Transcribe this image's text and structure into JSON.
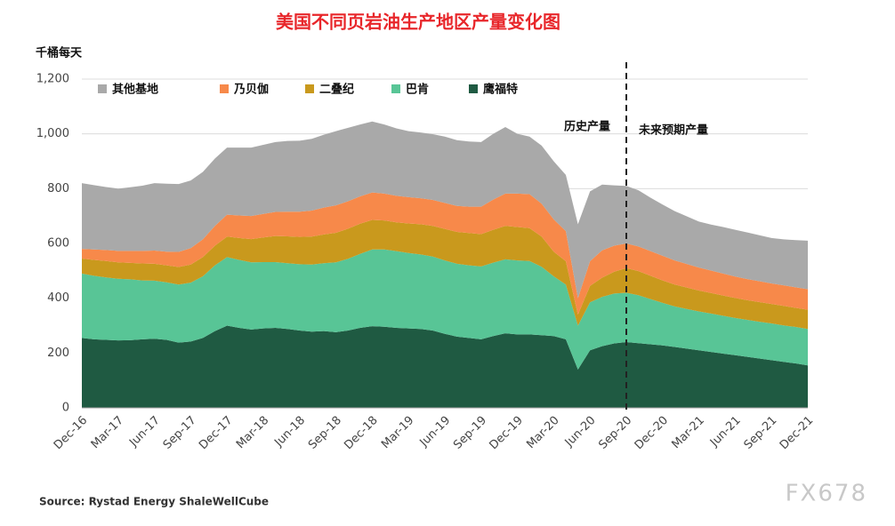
{
  "chart_data": {
    "type": "stacked_area",
    "title": "美国不同页岩油生产地区产量变化图",
    "y_axis_label": "千桶每天",
    "source": "Source: Rystad Energy ShaleWellCube",
    "watermark": "FX678",
    "annotations": [
      "历史产量",
      "未来预期产量"
    ],
    "forecast_from": "Sep-20",
    "categories": [
      "Dec-16",
      null,
      null,
      "Mar-17",
      null,
      null,
      "Jun-17",
      null,
      null,
      "Sep-17",
      null,
      null,
      "Dec-17",
      null,
      null,
      "Mar-18",
      null,
      null,
      "Jun-18",
      null,
      null,
      "Sep-18",
      null,
      null,
      "Dec-18",
      null,
      null,
      "Mar-19",
      null,
      null,
      "Jun-19",
      null,
      null,
      "Sep-19",
      null,
      null,
      "Dec-19",
      null,
      null,
      "Mar-20",
      null,
      null,
      "Jun-20",
      null,
      null,
      "Sep-20",
      null,
      null,
      "Dec-20",
      null,
      null,
      "Mar-21",
      null,
      null,
      "Jun-21",
      null,
      null,
      "Sep-21",
      null,
      null,
      "Dec-21"
    ],
    "series": [
      {
        "name": "其他基地",
        "color": "#a9a9a9",
        "values": [
          240,
          235,
          230,
          227,
          232,
          238,
          246,
          248,
          248,
          247,
          246,
          246,
          245,
          248,
          250,
          252,
          255,
          258,
          259,
          262,
          266,
          271,
          268,
          262,
          259,
          252,
          246,
          241,
          240,
          240,
          242,
          240,
          238,
          236,
          240,
          243,
          218,
          210,
          212,
          212,
          205,
          270,
          255,
          240,
          220,
          210,
          205,
          195,
          187,
          180,
          174,
          168,
          168,
          170,
          171,
          170,
          168,
          166,
          168,
          172,
          177
        ]
      },
      {
        "name": "乃贝伽",
        "color": "#f7894a",
        "values": [
          35,
          38,
          40,
          42,
          44,
          46,
          48,
          50,
          55,
          60,
          65,
          72,
          80,
          82,
          84,
          86,
          88,
          90,
          92,
          95,
          98,
          100,
          100,
          100,
          100,
          98,
          97,
          96,
          95,
          95,
          95,
          95,
          96,
          100,
          110,
          118,
          122,
          124,
          120,
          118,
          110,
          60,
          90,
          100,
          95,
          90,
          90,
          90,
          90,
          88,
          86,
          84,
          82,
          80,
          78,
          77,
          76,
          75,
          75,
          75,
          75
        ]
      },
      {
        "name": "二叠纪",
        "color": "#c9991d",
        "values": [
          55,
          58,
          60,
          60,
          60,
          62,
          62,
          62,
          64,
          66,
          70,
          72,
          75,
          80,
          85,
          90,
          95,
          98,
          100,
          102,
          105,
          108,
          110,
          110,
          108,
          106,
          105,
          108,
          110,
          112,
          115,
          116,
          118,
          118,
          120,
          122,
          122,
          120,
          110,
          90,
          85,
          40,
          60,
          70,
          80,
          90,
          88,
          85,
          82,
          80,
          78,
          76,
          75,
          74,
          73,
          72,
          72,
          71,
          71,
          70,
          70
        ]
      },
      {
        "name": "巴肯",
        "color": "#58c596",
        "values": [
          235,
          232,
          228,
          225,
          222,
          215,
          212,
          210,
          212,
          215,
          225,
          240,
          250,
          248,
          245,
          242,
          240,
          240,
          242,
          245,
          248,
          255,
          262,
          270,
          280,
          282,
          280,
          275,
          272,
          270,
          268,
          266,
          265,
          266,
          268,
          270,
          270,
          268,
          250,
          218,
          200,
          160,
          175,
          180,
          182,
          180,
          175,
          165,
          155,
          148,
          145,
          142,
          140,
          138,
          136,
          135,
          134,
          134,
          133,
          133,
          133
        ]
      },
      {
        "name": "鹰福特",
        "color": "#1f5a42",
        "values": [
          255,
          250,
          248,
          246,
          247,
          250,
          252,
          248,
          238,
          242,
          255,
          280,
          300,
          292,
          286,
          290,
          292,
          288,
          282,
          278,
          280,
          276,
          282,
          292,
          298,
          296,
          292,
          290,
          288,
          282,
          270,
          260,
          255,
          250,
          262,
          272,
          268,
          268,
          265,
          262,
          250,
          140,
          210,
          225,
          235,
          240,
          236,
          232,
          228,
          222,
          216,
          210,
          204,
          198,
          192,
          186,
          180,
          174,
          168,
          162,
          155
        ]
      }
    ],
    "ylim": [
      0,
      1200
    ],
    "yticks": [
      0,
      200,
      400,
      600,
      800,
      {
        "value": 1000,
        "label": "1,000"
      },
      {
        "value": 1200,
        "label": "1,200"
      }
    ],
    "grid": true,
    "legend": "top-left"
  }
}
